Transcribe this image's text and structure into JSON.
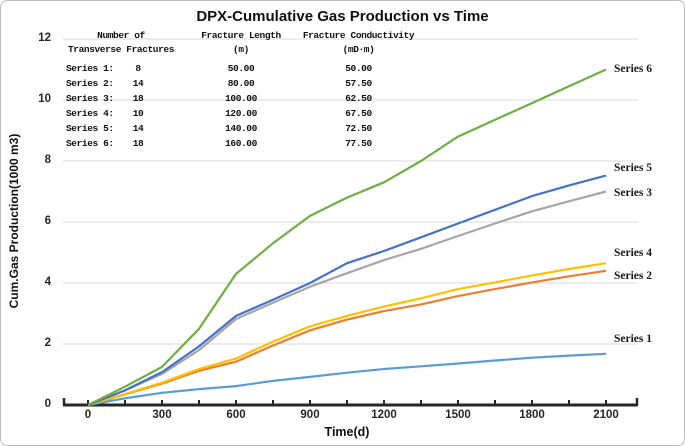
{
  "title": "DPX-Cumulative Gas Production vs Time",
  "axes": {
    "x_label": "Time(d)",
    "y_label": "Cum.Gas Production(1000 m3)",
    "x_tick_labels": [
      0,
      300,
      600,
      900,
      1200,
      1500,
      1800,
      2100
    ],
    "y_tick_labels": [
      0,
      2,
      4,
      6,
      8,
      10,
      12
    ]
  },
  "legend_table": {
    "header_row1": {
      "col12": "Number of",
      "col3": "Fracture Length",
      "col4": "Fracture Conductivity"
    },
    "header_row2": {
      "col12": "Transverse Fractures",
      "col3": "(m)",
      "col4": "(mD·m)"
    },
    "rows": [
      {
        "name": "Series 1:",
        "fractures": "8",
        "length": "50.00",
        "conductivity": "50.00"
      },
      {
        "name": "Series 2:",
        "fractures": "14",
        "length": "80.00",
        "conductivity": "57.50"
      },
      {
        "name": "Series 3:",
        "fractures": "18",
        "length": "100.00",
        "conductivity": "62.50"
      },
      {
        "name": "Series 4:",
        "fractures": "10",
        "length": "120.00",
        "conductivity": "67.50"
      },
      {
        "name": "Series 5:",
        "fractures": "14",
        "length": "140.00",
        "conductivity": "72.50"
      },
      {
        "name": "Series 6:",
        "fractures": "18",
        "length": "160.00",
        "conductivity": "77.50"
      }
    ]
  },
  "chart_data": {
    "type": "line",
    "title": "DPX-Cumulative Gas Production vs Time",
    "xlabel": "Time(d)",
    "ylabel": "Cum.Gas Production(1000 m3)",
    "xlim": [
      -100,
      2230
    ],
    "ylim": [
      0,
      12
    ],
    "grid": "horizontal",
    "x_ticks_minor_step": 150,
    "x": [
      0,
      150,
      300,
      450,
      600,
      750,
      900,
      1050,
      1200,
      1350,
      1500,
      1650,
      1800,
      1950,
      2100
    ],
    "series": [
      {
        "name": "Series 1",
        "color": "#5B9BD5",
        "values": [
          0,
          0.22,
          0.4,
          0.52,
          0.62,
          0.79,
          0.92,
          1.06,
          1.18,
          1.27,
          1.36,
          1.46,
          1.55,
          1.62,
          1.68
        ]
      },
      {
        "name": "Series 2",
        "color": "#ED7D31",
        "values": [
          0,
          0.35,
          0.7,
          1.12,
          1.42,
          1.95,
          2.45,
          2.8,
          3.08,
          3.3,
          3.57,
          3.8,
          4.02,
          4.22,
          4.4
        ]
      },
      {
        "name": "Series 3",
        "color": "#A6A6A6",
        "values": [
          0,
          0.48,
          1.02,
          1.8,
          2.82,
          3.35,
          3.88,
          4.32,
          4.75,
          5.12,
          5.54,
          5.95,
          6.35,
          6.68,
          7.0
        ]
      },
      {
        "name": "Series 4",
        "color": "#FFC000",
        "values": [
          0,
          0.36,
          0.73,
          1.18,
          1.52,
          2.08,
          2.58,
          2.92,
          3.23,
          3.5,
          3.8,
          4.02,
          4.25,
          4.46,
          4.65
        ]
      },
      {
        "name": "Series 5",
        "color": "#4472C4",
        "values": [
          0,
          0.48,
          1.08,
          1.92,
          2.92,
          3.45,
          4.0,
          4.65,
          5.05,
          5.5,
          5.95,
          6.4,
          6.85,
          7.2,
          7.52
        ]
      },
      {
        "name": "Series 6",
        "color": "#70AD47",
        "values": [
          0,
          0.6,
          1.25,
          2.5,
          4.3,
          5.3,
          6.2,
          6.8,
          7.3,
          8.0,
          8.8,
          9.35,
          9.9,
          10.45,
          11.0
        ]
      }
    ]
  }
}
